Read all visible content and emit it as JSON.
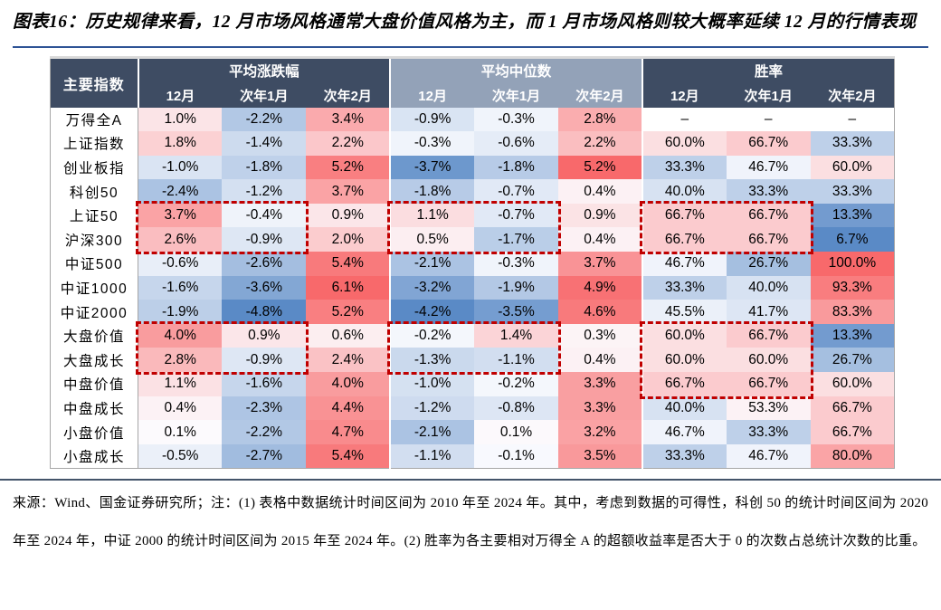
{
  "title": "图表16：历史规律来看，12 月市场风格通常大盘价值风格为主，而 1 月市场风格则较大概率延续 12 月的行情表现",
  "footnote": "来源：Wind、国金证券研究所；注：(1) 表格中数据统计时间区间为 2010 年至 2024 年。其中，考虑到数据的可得性，科创 50 的统计时间区间为 2020 年至 2024 年，中证 2000 的统计时间区间为 2015 年至 2024 年。(2) 胜率为各主要相对万得全 A 的超额收益率是否大于 0 的次数占总统计次数的比重。",
  "colors": {
    "title_rule": "#2E5395",
    "bottom_rule": "#44546A",
    "header_dark": "#3E4C63",
    "header_light": "#93A2B8",
    "highlight_red": "#C00000",
    "heat_red": "#F8696B",
    "heat_blue": "#5A8AC6",
    "heat_white": "#FCFCFF"
  },
  "heatmap": {
    "groups": [
      {
        "maxPos": 6.1,
        "maxNeg": 4.8
      },
      {
        "maxPos": 5.2,
        "maxNeg": 4.2
      },
      {
        "mid": 50,
        "spanPos": 50,
        "spanNeg": 43.3
      }
    ]
  },
  "table": {
    "corner_label": "主要指数",
    "null_display": "–",
    "groups": [
      {
        "label": "平均涨跌幅",
        "theme": "dark",
        "cols": [
          "12月",
          "次年1月",
          "次年2月"
        ]
      },
      {
        "label": "平均中位数",
        "theme": "light",
        "cols": [
          "12月",
          "次年1月",
          "次年2月"
        ]
      },
      {
        "label": "胜率",
        "theme": "dark",
        "cols": [
          "12月",
          "次年1月",
          "次年2月"
        ]
      }
    ],
    "rows": [
      {
        "label": "万得全A",
        "avg": [
          1.0,
          -2.2,
          3.4
        ],
        "median": [
          -0.9,
          -0.3,
          2.8
        ],
        "win": [
          null,
          null,
          null
        ]
      },
      {
        "label": "上证指数",
        "avg": [
          1.8,
          -1.4,
          2.2
        ],
        "median": [
          -0.3,
          -0.6,
          2.2
        ],
        "win": [
          60.0,
          66.7,
          33.3
        ]
      },
      {
        "label": "创业板指",
        "avg": [
          -1.0,
          -1.8,
          5.2
        ],
        "median": [
          -3.7,
          -1.8,
          5.2
        ],
        "win": [
          33.3,
          46.7,
          60.0
        ]
      },
      {
        "label": "科创50",
        "avg": [
          -2.4,
          -1.2,
          3.7
        ],
        "median": [
          -1.8,
          -0.7,
          0.4
        ],
        "win": [
          40.0,
          33.3,
          33.3
        ]
      },
      {
        "label": "上证50",
        "avg": [
          3.7,
          -0.4,
          0.9
        ],
        "median": [
          1.1,
          -0.7,
          0.9
        ],
        "win": [
          66.7,
          66.7,
          13.3
        ]
      },
      {
        "label": "沪深300",
        "avg": [
          2.6,
          -0.9,
          2.0
        ],
        "median": [
          0.5,
          -1.7,
          0.4
        ],
        "win": [
          66.7,
          66.7,
          6.7
        ]
      },
      {
        "label": "中证500",
        "avg": [
          -0.6,
          -2.6,
          5.4
        ],
        "median": [
          -2.1,
          -0.3,
          3.7
        ],
        "win": [
          46.7,
          26.7,
          100.0
        ]
      },
      {
        "label": "中证1000",
        "avg": [
          -1.6,
          -3.6,
          6.1
        ],
        "median": [
          -3.2,
          -1.9,
          4.9
        ],
        "win": [
          33.3,
          40.0,
          93.3
        ]
      },
      {
        "label": "中证2000",
        "avg": [
          -1.9,
          -4.8,
          5.2
        ],
        "median": [
          -4.2,
          -3.5,
          4.6
        ],
        "win": [
          45.5,
          41.7,
          83.3
        ]
      },
      {
        "label": "大盘价值",
        "avg": [
          4.0,
          0.9,
          0.6
        ],
        "median": [
          -0.2,
          1.4,
          0.3
        ],
        "win": [
          60.0,
          66.7,
          13.3
        ]
      },
      {
        "label": "大盘成长",
        "avg": [
          2.8,
          -0.9,
          2.4
        ],
        "median": [
          -1.3,
          -1.1,
          0.4
        ],
        "win": [
          60.0,
          60.0,
          26.7
        ]
      },
      {
        "label": "中盘价值",
        "avg": [
          1.1,
          -1.6,
          4.0
        ],
        "median": [
          -1.0,
          -0.2,
          3.3
        ],
        "win": [
          66.7,
          66.7,
          60.0
        ]
      },
      {
        "label": "中盘成长",
        "avg": [
          0.4,
          -2.3,
          4.4
        ],
        "median": [
          -1.2,
          -0.8,
          3.3
        ],
        "win": [
          40.0,
          53.3,
          66.7
        ]
      },
      {
        "label": "小盘价值",
        "avg": [
          0.1,
          -2.2,
          4.7
        ],
        "median": [
          -2.1,
          0.1,
          3.2
        ],
        "win": [
          46.7,
          33.3,
          66.7
        ]
      },
      {
        "label": "小盘成长",
        "avg": [
          -0.5,
          -2.7,
          5.4
        ],
        "median": [
          -1.1,
          -0.1,
          3.5
        ],
        "win": [
          33.3,
          46.7,
          80.0
        ]
      }
    ]
  },
  "highlights": [
    {
      "group": 0,
      "colStart": 0,
      "colEnd": 1,
      "rowStart": 4,
      "rowEnd": 5
    },
    {
      "group": 1,
      "colStart": 0,
      "colEnd": 1,
      "rowStart": 4,
      "rowEnd": 5
    },
    {
      "group": 2,
      "colStart": 0,
      "colEnd": 1,
      "rowStart": 4,
      "rowEnd": 5
    },
    {
      "group": 0,
      "colStart": 0,
      "colEnd": 1,
      "rowStart": 9,
      "rowEnd": 10
    },
    {
      "group": 1,
      "colStart": 0,
      "colEnd": 1,
      "rowStart": 9,
      "rowEnd": 10
    },
    {
      "group": 2,
      "colStart": 0,
      "colEnd": 1,
      "rowStart": 9,
      "rowEnd": 11
    }
  ]
}
